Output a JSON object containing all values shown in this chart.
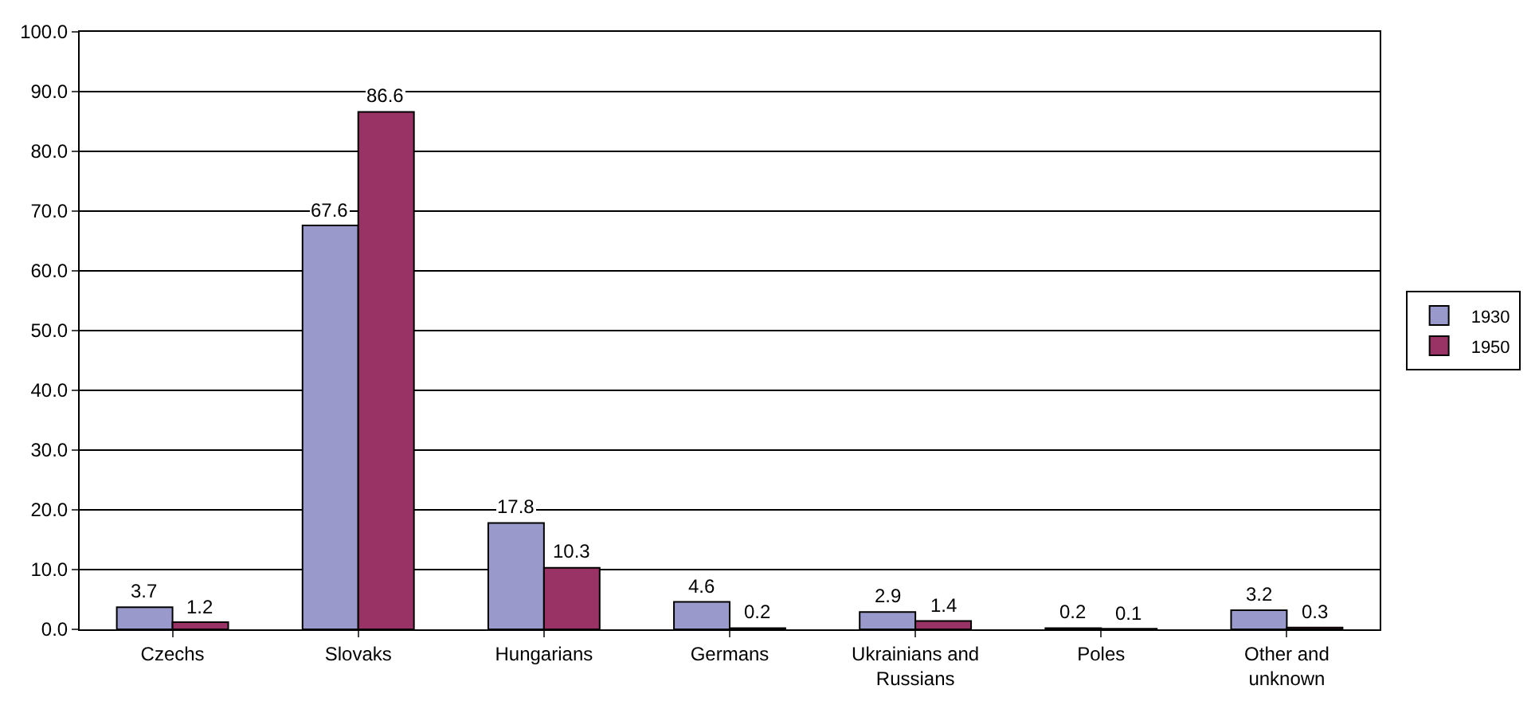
{
  "chart_data": {
    "type": "bar",
    "categories": [
      "Czechs",
      "Slovaks",
      "Hungarians",
      "Germans",
      "Ukrainians and Russians",
      "Poles",
      "Other and unknown"
    ],
    "series": [
      {
        "name": "1930",
        "color": "#9999cc",
        "values": [
          3.7,
          67.6,
          17.8,
          4.6,
          2.9,
          0.2,
          3.2
        ]
      },
      {
        "name": "1950",
        "color": "#993366",
        "values": [
          1.2,
          86.6,
          10.3,
          0.2,
          1.4,
          0.1,
          0.3
        ]
      }
    ],
    "ylim": [
      0,
      100
    ],
    "yticks": [
      {
        "value": 0,
        "label": "0.0"
      },
      {
        "value": 10,
        "label": "10.0"
      },
      {
        "value": 20,
        "label": "20.0"
      },
      {
        "value": 30,
        "label": "30.0"
      },
      {
        "value": 40,
        "label": "40.0"
      },
      {
        "value": 50,
        "label": "50.0"
      },
      {
        "value": 60,
        "label": "60.0"
      },
      {
        "value": 70,
        "label": "70.0"
      },
      {
        "value": 80,
        "label": "80.0"
      },
      {
        "value": 90,
        "label": "90.0"
      },
      {
        "value": 100,
        "label": "100.0"
      }
    ],
    "grid": "y",
    "legend": "right",
    "data_labels": true
  }
}
